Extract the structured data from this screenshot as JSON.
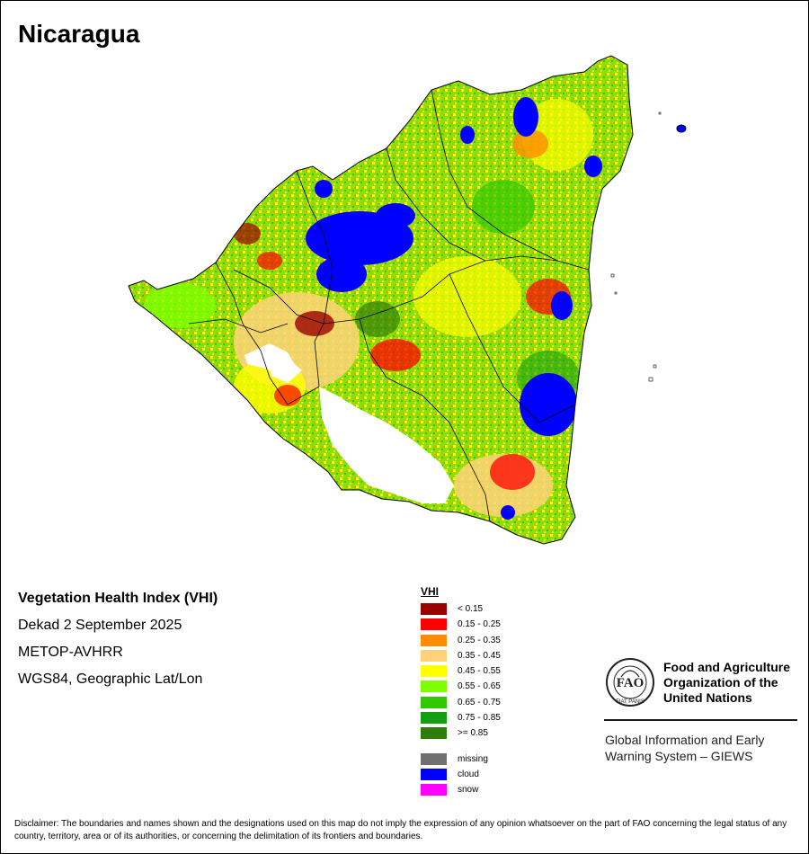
{
  "map": {
    "title": "Nicaragua"
  },
  "info": {
    "index_name": "Vegetation Health Index (VHI)",
    "period": "Dekad 2 September 2025",
    "sensor": "METOP-AVHRR",
    "projection": "WGS84, Geographic Lat/Lon"
  },
  "legend": {
    "title": "VHI",
    "classes": [
      {
        "label": "< 0.15",
        "color": "#9b0000"
      },
      {
        "label": "0.15 - 0.25",
        "color": "#ff0000"
      },
      {
        "label": "0.25 - 0.35",
        "color": "#ff8c00"
      },
      {
        "label": "0.35 - 0.45",
        "color": "#ffd27a"
      },
      {
        "label": "0.45 - 0.55",
        "color": "#ffff00"
      },
      {
        "label": "0.55 - 0.65",
        "color": "#7dff00"
      },
      {
        "label": "0.65 - 0.75",
        "color": "#32c800"
      },
      {
        "label": "0.75 - 0.85",
        "color": "#139e13"
      },
      {
        "label": ">= 0.85",
        "color": "#2e7d0a"
      }
    ],
    "extra_classes": [
      {
        "label": "missing",
        "color": "#707070"
      },
      {
        "label": "cloud",
        "color": "#0000ff"
      },
      {
        "label": "snow",
        "color": "#ff00ff"
      }
    ]
  },
  "organization": {
    "logo_text": "FAO",
    "logo_motto": "FIAT PANIS",
    "name_line1": "Food and Agriculture",
    "name_line2": "Organization of the",
    "name_line3": "United Nations",
    "system_line1": "Global Information and Early",
    "system_line2": "Warning System – GIEWS"
  },
  "disclaimer": "Disclaimer: The boundaries and names shown and the designations used on this map do not imply the expression of any opinion whatsoever on the part of FAO concerning the legal status of any country, territory, area or of its authorities, or concerning the delimitation of its frontiers and boundaries."
}
